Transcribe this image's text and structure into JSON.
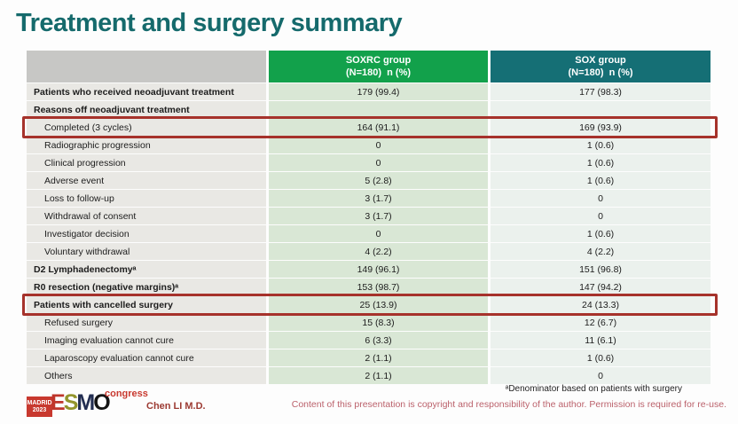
{
  "slide_title": "Treatment and surgery summary",
  "table": {
    "header": {
      "label_col": "",
      "soxrc_line1": "SOXRC group",
      "soxrc_line2": "(N=180)  n (%)",
      "sox_line1": "SOX group",
      "sox_line2": "(N=180)  n (%)"
    },
    "rows": [
      {
        "label": "Patients who received neoadjuvant treatment",
        "soxrc": "179 (99.4)",
        "sox": "177 (98.3)"
      },
      {
        "label": "Reasons off neoadjuvant treatment",
        "soxrc": "",
        "sox": ""
      },
      {
        "label": "Completed (3 cycles)",
        "soxrc": "164 (91.1)",
        "sox": "169 (93.9)"
      },
      {
        "label": "Radiographic progression",
        "soxrc": "0",
        "sox": "1 (0.6)"
      },
      {
        "label": "Clinical progression",
        "soxrc": "0",
        "sox": "1 (0.6)"
      },
      {
        "label": "Adverse event",
        "soxrc": "5 (2.8)",
        "sox": "1 (0.6)"
      },
      {
        "label": "Loss to follow-up",
        "soxrc": "3 (1.7)",
        "sox": "0"
      },
      {
        "label": "Withdrawal of consent",
        "soxrc": "3 (1.7)",
        "sox": "0"
      },
      {
        "label": "Investigator decision",
        "soxrc": "0",
        "sox": "1 (0.6)"
      },
      {
        "label": "Voluntary withdrawal",
        "soxrc": "4 (2.2)",
        "sox": "4 (2.2)"
      },
      {
        "label": "D2 Lymphadenectomyᵃ",
        "soxrc": "149 (96.1)",
        "sox": "151 (96.8)"
      },
      {
        "label": "R0 resection (negative margins)ᵃ",
        "soxrc": "153 (98.7)",
        "sox": "147 (94.2)"
      },
      {
        "label": "Patients with cancelled surgery",
        "soxrc": "25 (13.9)",
        "sox": "24 (13.3)"
      },
      {
        "label": "Refused surgery",
        "soxrc": "15 (8.3)",
        "sox": "12 (6.7)"
      },
      {
        "label": "Imaging evaluation cannot cure",
        "soxrc": "6 (3.3)",
        "sox": "11 (6.1)"
      },
      {
        "label": "Laparoscopy evaluation cannot cure",
        "soxrc": "2 (1.1)",
        "sox": "1 (0.6)"
      },
      {
        "label": "Others",
        "soxrc": "2 (1.1)",
        "sox": "0"
      }
    ]
  },
  "footnote": "ᵃDenominator based on patients with surgery",
  "copyright": "Content of this presentation is copyright and responsibility of the author.  Permission is required for re-use.",
  "presenter": "Chen LI M.D.",
  "logo": {
    "location_line1": "MADRID",
    "location_line2": "2023",
    "e": "E",
    "s": "S",
    "m": "M",
    "o": "O",
    "congress": "congress"
  },
  "colors": {
    "title": "#156a6c",
    "soxrc_header": "#12a14b",
    "sox_header": "#156f75",
    "highlight_border": "#a6322b",
    "copyright_text": "#bb616b"
  }
}
